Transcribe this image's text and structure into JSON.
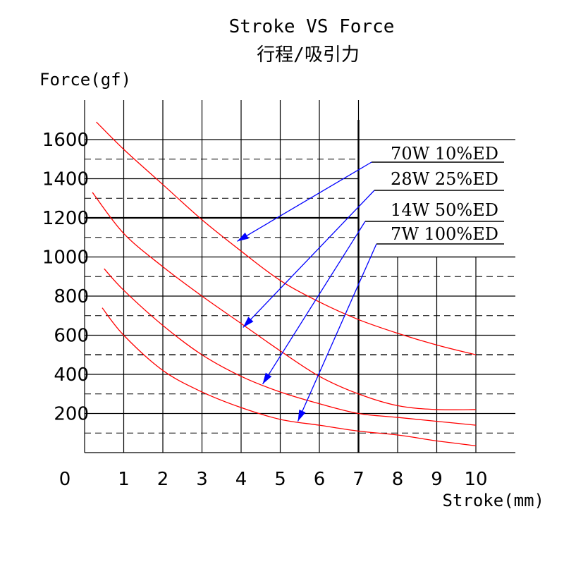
{
  "chart_data": {
    "type": "line",
    "title": "Stroke VS  Force",
    "subtitle": "行程/吸引力",
    "xlabel": "Stroke(mm)",
    "ylabel": "Force(gf)",
    "xlim": [
      0,
      11
    ],
    "ylim": [
      0,
      1600
    ],
    "x_ticks": [
      "0",
      "1",
      "2",
      "3",
      "4",
      "5",
      "6",
      "7",
      "8",
      "9",
      "10"
    ],
    "y_ticks": [
      "200",
      "400",
      "600",
      "800",
      "1000",
      "1200",
      "1400",
      "1600"
    ],
    "grid": true,
    "series": [
      {
        "name": "70W   10%ED",
        "color": "#ff0000",
        "x": [
          0.3,
          1,
          2,
          3,
          4,
          5,
          6,
          7,
          8,
          9,
          10
        ],
        "y": [
          1690,
          1550,
          1370,
          1190,
          1030,
          880,
          770,
          680,
          610,
          550,
          500
        ]
      },
      {
        "name": "28W   25%ED",
        "color": "#ff0000",
        "x": [
          0.2,
          1,
          2,
          3,
          4,
          5,
          6,
          7,
          8,
          9,
          10
        ],
        "y": [
          1330,
          1120,
          950,
          800,
          660,
          520,
          390,
          300,
          240,
          220,
          220
        ]
      },
      {
        "name": "14W   50%ED",
        "color": "#ff0000",
        "x": [
          0.5,
          1,
          2,
          3,
          4,
          5,
          6,
          7,
          8,
          9,
          10
        ],
        "y": [
          940,
          830,
          650,
          500,
          390,
          310,
          250,
          200,
          180,
          160,
          140
        ]
      },
      {
        "name": "7W   100%ED",
        "color": "#ff0000",
        "x": [
          0.45,
          1,
          2,
          3,
          4,
          5,
          6,
          7,
          8,
          9,
          10
        ],
        "y": [
          740,
          600,
          420,
          310,
          230,
          170,
          140,
          110,
          90,
          60,
          35
        ]
      }
    ],
    "legend_placement": "top-right",
    "arrow_color": "#0000ff"
  }
}
